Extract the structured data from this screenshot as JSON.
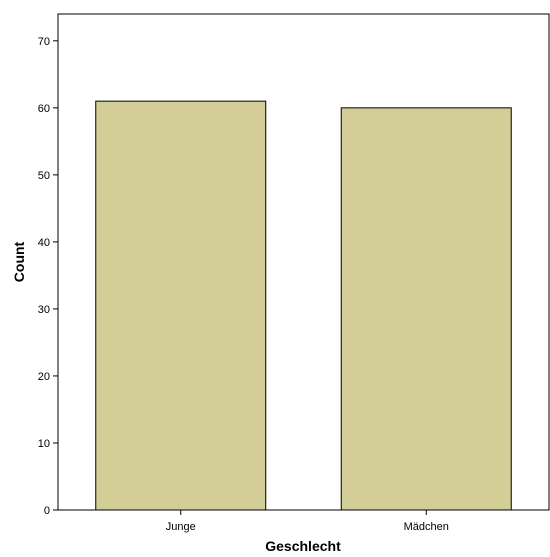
{
  "chart_data": {
    "type": "bar",
    "categories": [
      "Junge",
      "Mädchen"
    ],
    "values": [
      61,
      60
    ],
    "xlabel": "Geschlecht",
    "ylabel": "Count",
    "ylim": [
      0,
      74
    ],
    "yticks": [
      0,
      10,
      20,
      30,
      40,
      50,
      60,
      70
    ],
    "grid": false,
    "legend": "none"
  },
  "colors": {
    "bar_fill": "#d3cd98",
    "bar_stroke": "#000000",
    "axis": "#000000",
    "background": "#ffffff"
  }
}
